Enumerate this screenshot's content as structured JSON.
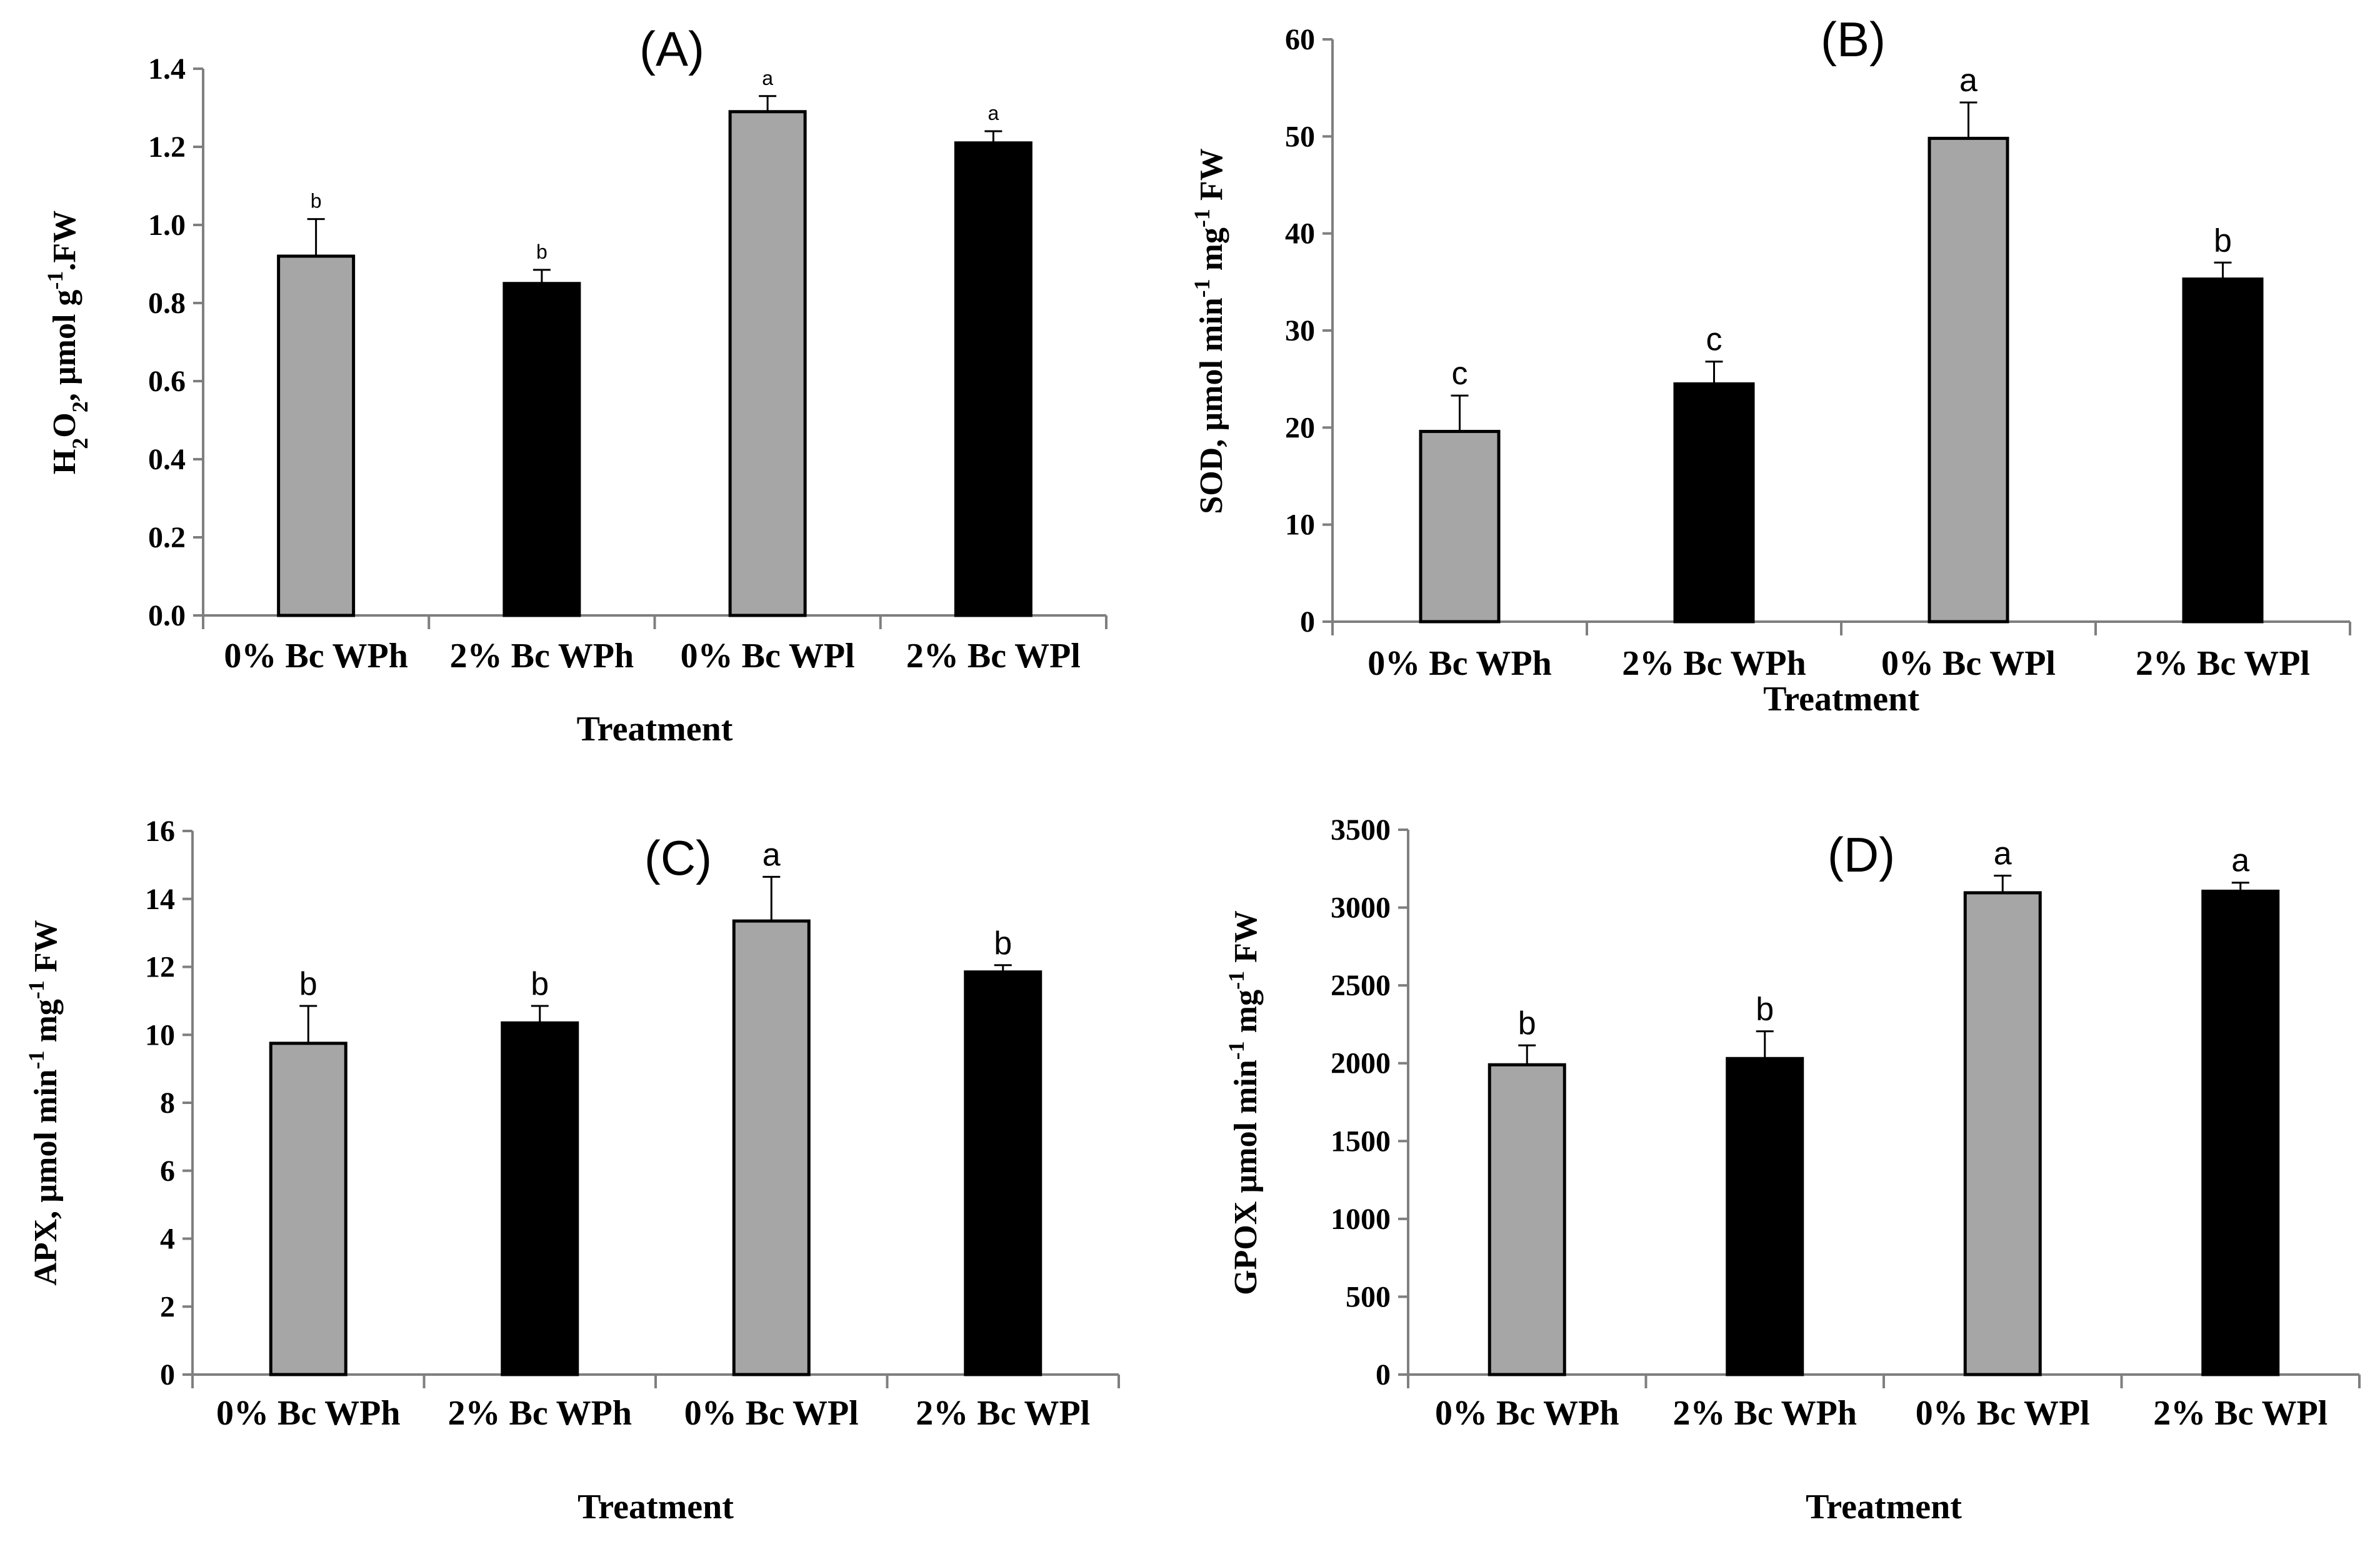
{
  "chart_data": [
    {
      "panel": "(A)",
      "type": "bar",
      "categories": [
        "0% Bc WPh",
        "2% Bc WPh",
        "0% Bc WPl",
        "2% Bc WPl"
      ],
      "values": [
        0.92,
        0.85,
        1.29,
        1.21
      ],
      "errors": [
        0.095,
        0.035,
        0.04,
        0.03
      ],
      "letters": [
        "b",
        "b",
        "a",
        "a"
      ],
      "bar_colors": [
        "#a6a6a6",
        "#000000",
        "#a6a6a6",
        "#000000"
      ],
      "ylim": [
        0,
        1.4
      ],
      "yticks": [
        "0.0",
        "0.2",
        "0.4",
        "0.6",
        "0.8",
        "1.0",
        "1.2",
        "1.4"
      ],
      "ylabel_parts": [
        {
          "t": "H"
        },
        {
          "t": "2",
          "sub": true
        },
        {
          "t": "O"
        },
        {
          "t": "2",
          "sub": true
        },
        {
          "t": ", µmol g"
        },
        {
          "t": "-1",
          "sup": true
        },
        {
          "t": ".FW"
        }
      ],
      "xlabel": "Treatment"
    },
    {
      "panel": "(B)",
      "type": "bar",
      "categories": [
        "0% Bc WPh",
        "2% Bc WPh",
        "0% Bc WPl",
        "2% Bc WPl"
      ],
      "values": [
        19.6,
        24.5,
        49.8,
        35.3
      ],
      "errors": [
        3.7,
        2.3,
        3.7,
        1.7
      ],
      "letters": [
        "c",
        "c",
        "a",
        "b"
      ],
      "bar_colors": [
        "#a6a6a6",
        "#000000",
        "#a6a6a6",
        "#000000"
      ],
      "ylim": [
        0,
        60
      ],
      "yticks": [
        "0",
        "10",
        "20",
        "30",
        "40",
        "50",
        "60"
      ],
      "ylabel_parts": [
        {
          "t": "SOD, µmol min"
        },
        {
          "t": "-1",
          "sup": true
        },
        {
          "t": " mg"
        },
        {
          "t": "-1",
          "sup": true
        },
        {
          "t": " FW"
        }
      ],
      "xlabel": "Treatment"
    },
    {
      "panel": "(C)",
      "type": "bar",
      "categories": [
        "0% Bc WPh",
        "2% Bc WPh",
        "0% Bc WPl",
        "2% Bc WPl"
      ],
      "values": [
        9.75,
        10.35,
        13.35,
        11.85
      ],
      "errors": [
        1.1,
        0.5,
        1.3,
        0.2
      ],
      "letters": [
        "b",
        "b",
        "a",
        "b"
      ],
      "bar_colors": [
        "#a6a6a6",
        "#000000",
        "#a6a6a6",
        "#000000"
      ],
      "ylim": [
        0,
        16
      ],
      "yticks": [
        "0",
        "2",
        "4",
        "6",
        "8",
        "10",
        "12",
        "14",
        "16"
      ],
      "ylabel_parts": [
        {
          "t": "APX, µmol min"
        },
        {
          "t": "-1",
          "sup": true
        },
        {
          "t": " mg"
        },
        {
          "t": "-1",
          "sup": true
        },
        {
          "t": " FW"
        }
      ],
      "xlabel": "Treatment"
    },
    {
      "panel": "(D)",
      "type": "bar",
      "categories": [
        "0% Bc WPh",
        "2% Bc WPh",
        "0% Bc WPl",
        "2% Bc WPl"
      ],
      "values": [
        1990,
        2030,
        3095,
        3105
      ],
      "errors": [
        125,
        175,
        110,
        55
      ],
      "letters": [
        "b",
        "b",
        "a",
        "a"
      ],
      "bar_colors": [
        "#a6a6a6",
        "#000000",
        "#a6a6a6",
        "#000000"
      ],
      "ylim": [
        0,
        3500
      ],
      "yticks": [
        "0",
        "500",
        "1000",
        "1500",
        "2000",
        "2500",
        "3000",
        "3500"
      ],
      "ylabel_parts": [
        {
          "t": "GPOX µmol min"
        },
        {
          "t": "-1",
          "sup": true
        },
        {
          "t": " mg"
        },
        {
          "t": "-1",
          "sup": true
        },
        {
          "t": " FW"
        }
      ],
      "xlabel": "Treatment"
    }
  ]
}
